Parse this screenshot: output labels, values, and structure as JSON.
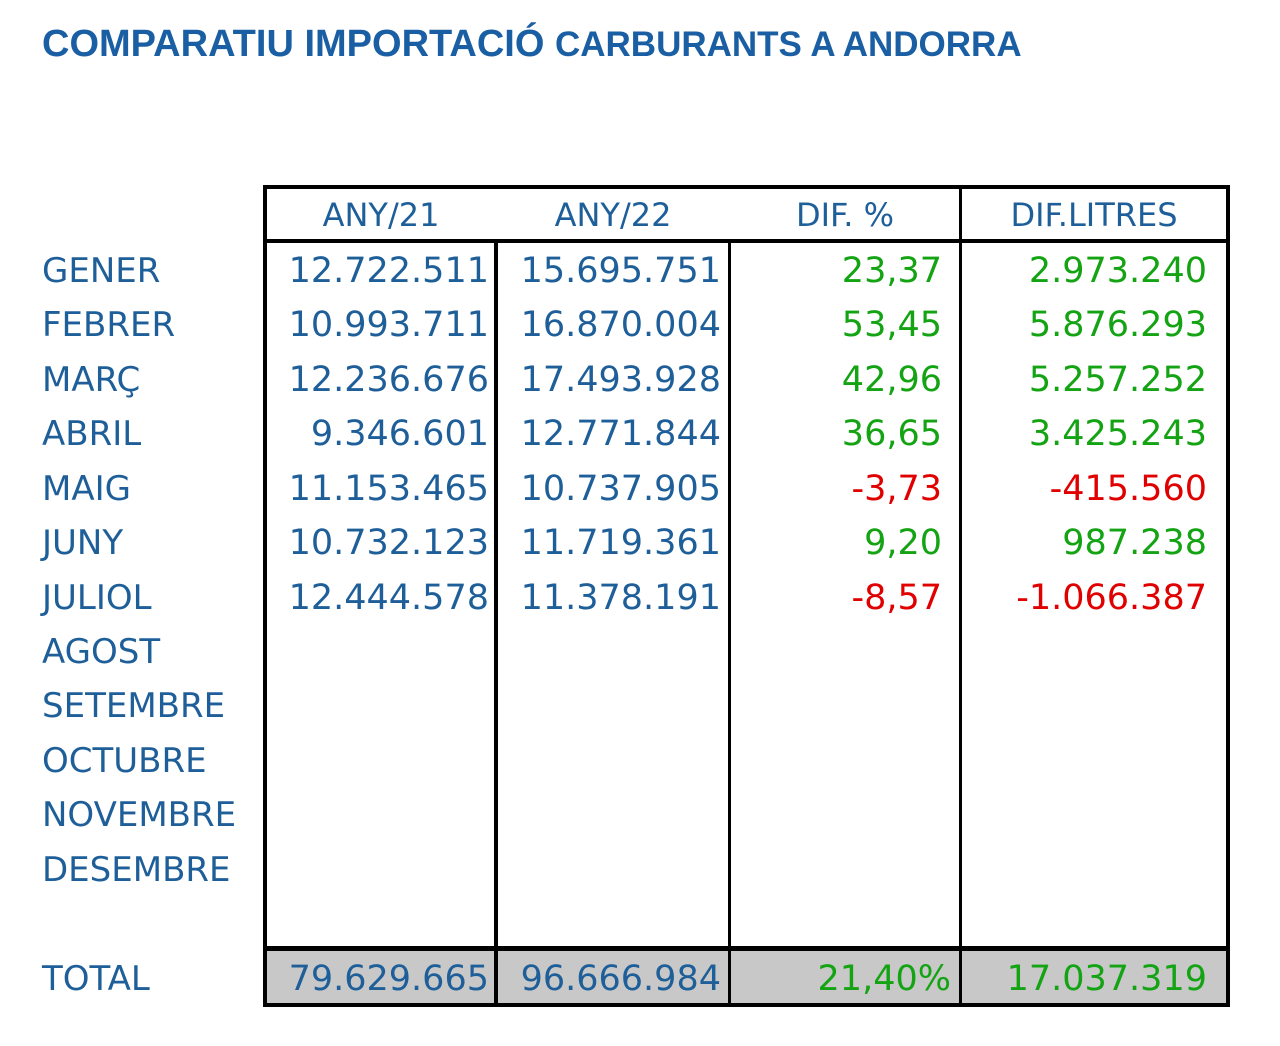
{
  "title": {
    "part1": "COMPARATIU IMPORTACIÓ",
    "part2": "CARBURANTS A ANDORRA"
  },
  "columns": [
    "ANY/21",
    "ANY/22",
    "DIF. %",
    "DIF.LITRES"
  ],
  "months": [
    "GENER",
    "FEBRER",
    "MARÇ",
    "ABRIL",
    "MAIG",
    "JUNY",
    "JULIOL",
    "AGOST",
    "SETEMBRE",
    "OCTUBRE",
    "NOVEMBRE",
    "DESEMBRE"
  ],
  "rows": [
    {
      "any21": "12.722.511",
      "any22": "15.695.751",
      "dif_pct": "23,37",
      "dif_litres": "2.973.240"
    },
    {
      "any21": "10.993.711",
      "any22": "16.870.004",
      "dif_pct": "53,45",
      "dif_litres": "5.876.293"
    },
    {
      "any21": "12.236.676",
      "any22": "17.493.928",
      "dif_pct": "42,96",
      "dif_litres": "5.257.252"
    },
    {
      "any21": "9.346.601",
      "any22": "12.771.844",
      "dif_pct": "36,65",
      "dif_litres": "3.425.243"
    },
    {
      "any21": "11.153.465",
      "any22": "10.737.905",
      "dif_pct": "-3,73",
      "dif_litres": "-415.560"
    },
    {
      "any21": "10.732.123",
      "any22": "11.719.361",
      "dif_pct": "9,20",
      "dif_litres": "987.238"
    },
    {
      "any21": "12.444.578",
      "any22": "11.378.191",
      "dif_pct": "-8,57",
      "dif_litres": "-1.066.387"
    }
  ],
  "total": {
    "label": "TOTAL",
    "any21": "79.629.665",
    "any22": "96.666.984",
    "dif_pct": "21,40%",
    "dif_litres": "17.037.319"
  },
  "colors": {
    "title": "#1a5fa3",
    "text": "#1f5f99",
    "positive": "#13a313",
    "negative": "#e00000",
    "total_bg": "#c8c8c8"
  }
}
